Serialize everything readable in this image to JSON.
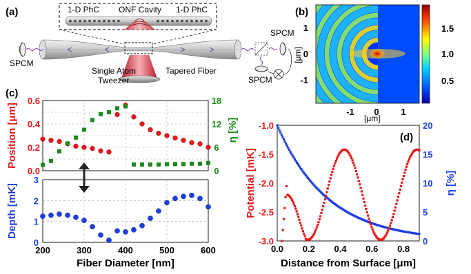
{
  "panel_a": {
    "letter": "(a)",
    "phc_left": "1-D PhC",
    "cavity": "ONF Cavity",
    "phc_right": "1-D PhC",
    "spcm_left": "SPCM",
    "spcm_right_top": "SPCM",
    "spcm_right_bottom": "SPCM",
    "tweezer": "Single Atom\nTweezer",
    "tapered": "Tapered Fiber"
  },
  "panel_b": {
    "letter": "(b)",
    "ylabel": "[μm]",
    "xlabel": "[μm]",
    "yticks": [
      "1",
      "0",
      "-1"
    ],
    "xticks": [
      "-1",
      "0",
      "1"
    ],
    "cbar_ticks": [
      "1.5",
      "1.0",
      "0.5"
    ]
  },
  "chart_data": [
    {
      "type": "scatter",
      "panel": "(c) upper",
      "xlabel": "",
      "ylabel_left": "Position [μm]",
      "ylabel_right": "η [%]",
      "xlim": [
        200,
        600
      ],
      "ylim_left": [
        0,
        0.6
      ],
      "ylim_right": [
        0,
        18
      ],
      "yticks_left": [
        "0.6",
        "0.4",
        "0.2",
        "0.0"
      ],
      "yticks_right": [
        "18",
        "12",
        "6",
        "0"
      ],
      "series": [
        {
          "axis": "left",
          "color": "#e31a1c",
          "x": [
            200,
            220,
            240,
            260,
            280,
            300,
            320,
            340,
            360,
            380,
            400,
            420,
            440,
            460,
            480,
            500,
            520,
            540,
            560,
            580,
            600
          ],
          "y": [
            0.27,
            0.26,
            0.25,
            0.23,
            0.21,
            0.2,
            0.19,
            0.17,
            0.16,
            0.48,
            0.56,
            0.46,
            0.4,
            0.35,
            0.32,
            0.3,
            0.28,
            0.26,
            0.24,
            0.23,
            0.2
          ]
        },
        {
          "axis": "right",
          "color": "#1b8a1b",
          "x": [
            200,
            220,
            240,
            260,
            280,
            300,
            320,
            340,
            360,
            380,
            400,
            420,
            440,
            460,
            480,
            500,
            520,
            540,
            560,
            580,
            600
          ],
          "y": [
            1.5,
            2.5,
            5,
            7,
            8.5,
            10.5,
            13,
            14.5,
            15,
            16,
            16.5,
            1.6,
            1.6,
            1.6,
            1.6,
            1.7,
            1.7,
            1.7,
            1.8,
            1.8,
            2.0
          ]
        }
      ]
    },
    {
      "type": "scatter",
      "panel": "(c) lower",
      "xlabel": "Fiber Diameter [nm]",
      "ylabel": "Depth [mK]",
      "xlim": [
        200,
        600
      ],
      "ylim": [
        0,
        3
      ],
      "xticks": [
        "200",
        "300",
        "400",
        "500",
        "600"
      ],
      "yticks": [
        "3",
        "2",
        "1",
        "0"
      ],
      "series": [
        {
          "color": "#1f3fe0",
          "x": [
            200,
            220,
            240,
            260,
            280,
            300,
            320,
            340,
            360,
            380,
            400,
            420,
            440,
            460,
            480,
            500,
            520,
            540,
            560,
            580,
            600
          ],
          "y": [
            1.25,
            1.3,
            1.35,
            1.3,
            1.2,
            1.05,
            0.75,
            0.35,
            0.1,
            0.55,
            0.5,
            0.6,
            0.8,
            1.15,
            1.5,
            1.9,
            2.1,
            2.2,
            2.25,
            2.1,
            1.7
          ]
        }
      ]
    },
    {
      "type": "scatter",
      "panel": "(d)",
      "letter": "(d)",
      "xlabel": "Distance from Surface [μm]",
      "ylabel_left": "Potential [mK]",
      "ylabel_right": "η [%]",
      "xlim": [
        0,
        0.9
      ],
      "ylim_left": [
        -3.0,
        -1.0
      ],
      "ylim_right": [
        0,
        20
      ],
      "xticks": [
        "0.0",
        "0.2",
        "0.4",
        "0.6",
        "0.8"
      ],
      "yticks_left": [
        "-1.0",
        "-1.5",
        "-2.0",
        "-2.5",
        "-3.0"
      ],
      "yticks_right": [
        "20",
        "15",
        "10",
        "5",
        "0"
      ],
      "series": [
        {
          "axis": "left",
          "color": "#e31a1c",
          "name": "Potential"
        },
        {
          "axis": "right",
          "color": "#1f3fe0",
          "name": "η"
        }
      ]
    }
  ]
}
